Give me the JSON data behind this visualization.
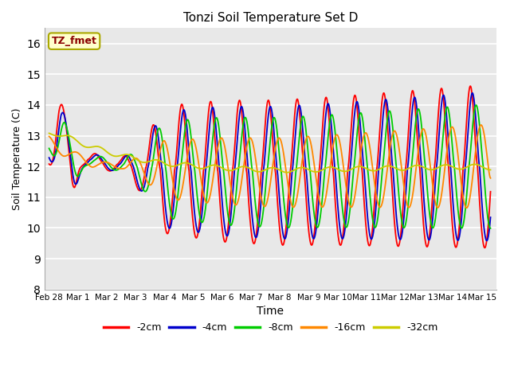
{
  "title": "Tonzi Soil Temperature Set D",
  "xlabel": "Time",
  "ylabel": "Soil Temperature (C)",
  "ylim": [
    8.0,
    16.5
  ],
  "annotation_text": "TZ_fmet",
  "annotation_box_color": "#ffffcc",
  "annotation_text_color": "#8b0000",
  "legend_labels": [
    "-2cm",
    "-4cm",
    "-8cm",
    "-16cm",
    "-32cm"
  ],
  "line_colors": [
    "#ff0000",
    "#0000cc",
    "#00cc00",
    "#ff8800",
    "#cccc00"
  ],
  "background_color": "#e8e8e8",
  "tick_positions": [
    0,
    1,
    2,
    3,
    4,
    5,
    6,
    7,
    8,
    9,
    10,
    11,
    12,
    13,
    14,
    15
  ],
  "tick_labels": [
    "Feb 28",
    "Mar 1",
    "Mar 2",
    "Mar 3",
    "Mar 4",
    "Mar 5",
    "Mar 6",
    "Mar 7",
    "Mar 8",
    "Mar 9",
    "Mar 10",
    "Mar 11",
    "Mar 12",
    "Mar 13",
    "Mar 14",
    "Mar 15"
  ],
  "yticks": [
    8.0,
    9.0,
    10.0,
    11.0,
    12.0,
    13.0,
    14.0,
    15.0,
    16.0
  ]
}
